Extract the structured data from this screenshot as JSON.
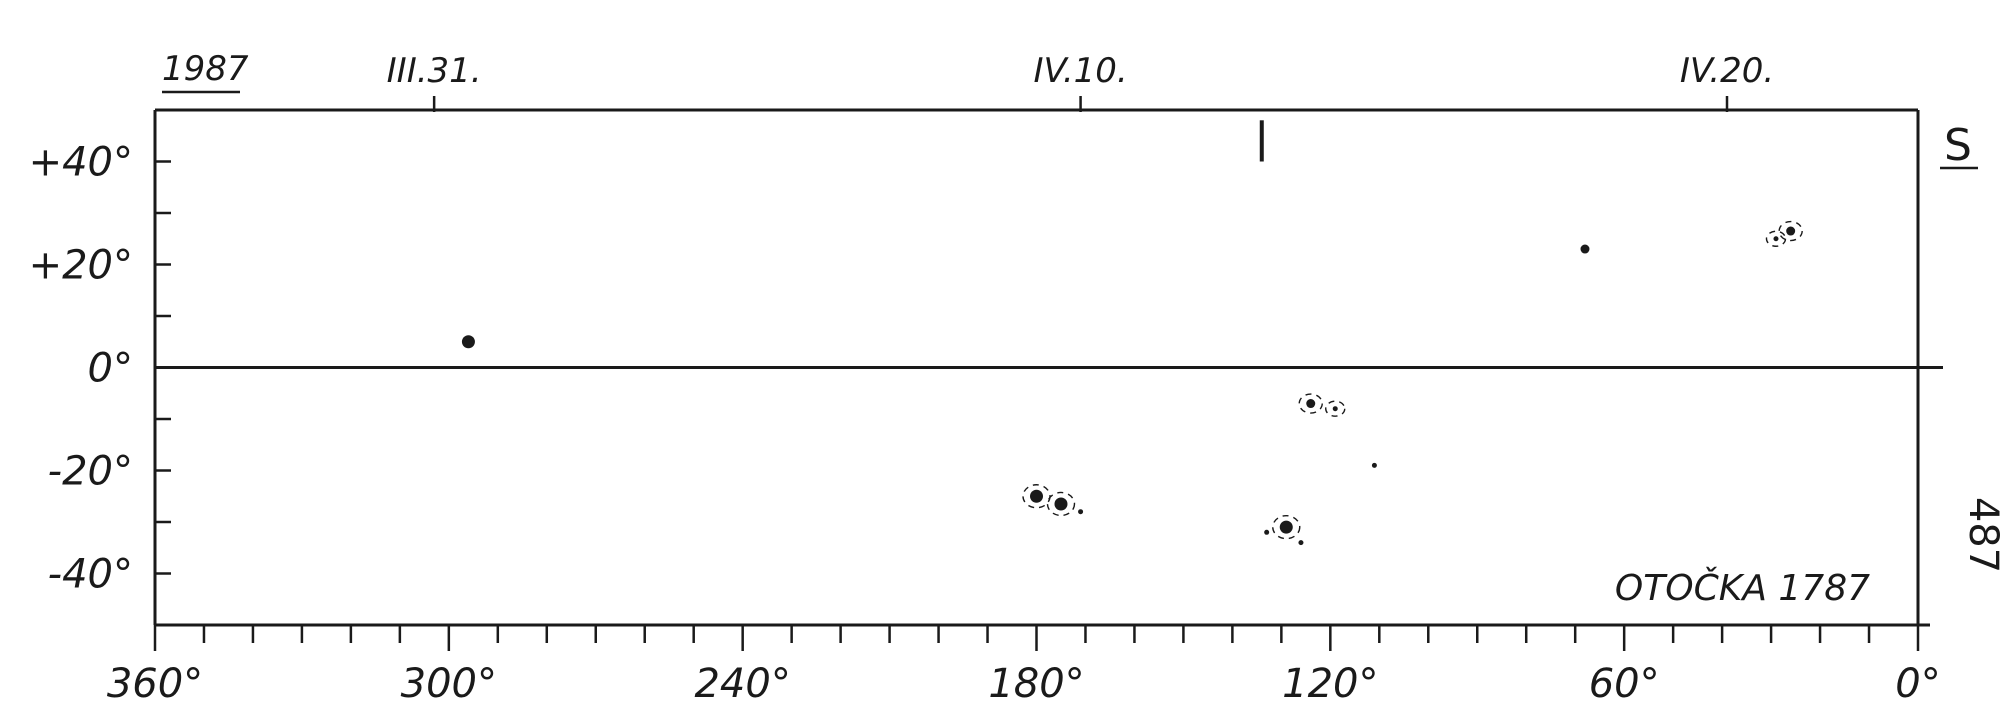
{
  "chart_data": {
    "type": "scatter",
    "title": "OTOČKA 1787",
    "year": "1987",
    "hemisphere_mark": "S",
    "page_number": "487",
    "xlabel": "",
    "ylabel": "",
    "xlim": [
      360,
      0
    ],
    "ylim": [
      -50,
      50
    ],
    "x_axis_reversed": true,
    "grid": false,
    "x_ticks": [
      "360°",
      "300°",
      "240°",
      "180°",
      "120°",
      "60°",
      "0°"
    ],
    "x_tick_values": [
      360,
      300,
      240,
      180,
      120,
      60,
      0
    ],
    "y_ticks": [
      "+40°",
      "+20°",
      "0°",
      "-20°",
      "-40°"
    ],
    "y_tick_values": [
      40,
      20,
      0,
      -20,
      -40
    ],
    "date_ticks": [
      {
        "label": "III.31.",
        "x": 303
      },
      {
        "label": "IV.10.",
        "x": 171
      },
      {
        "label": "IV.20.",
        "x": 39
      }
    ],
    "series": [
      {
        "points": [
          {
            "x": 296,
            "y": 5,
            "size": 3,
            "pen": false
          },
          {
            "x": 180,
            "y": -25,
            "size": 3,
            "pen": true
          },
          {
            "x": 175,
            "y": -26.5,
            "size": 3,
            "pen": true
          },
          {
            "x": 171,
            "y": -28,
            "size": 1,
            "pen": false
          },
          {
            "x": 129,
            "y": -31,
            "size": 3,
            "pen": true
          },
          {
            "x": 133,
            "y": -32,
            "size": 1,
            "pen": false
          },
          {
            "x": 126,
            "y": -34,
            "size": 1,
            "pen": false
          },
          {
            "x": 124,
            "y": -7,
            "size": 2,
            "pen": true
          },
          {
            "x": 119,
            "y": -8,
            "size": 1,
            "pen": true
          },
          {
            "x": 111,
            "y": -19,
            "size": 1,
            "pen": false
          },
          {
            "x": 68,
            "y": 23,
            "size": 2,
            "pen": false
          },
          {
            "x": 29,
            "y": 25,
            "size": 1,
            "pen": true
          },
          {
            "x": 26,
            "y": 26.5,
            "size": 2,
            "pen": true
          }
        ]
      }
    ],
    "markers": [
      {
        "type": "vertical-bar",
        "x": 134,
        "y1": 40,
        "y2": 48
      }
    ]
  }
}
